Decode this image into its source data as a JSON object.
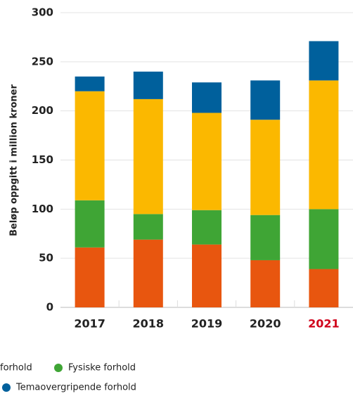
{
  "chart_data": {
    "type": "stacked_bar",
    "y_label": "Beløp oppgitt i million kroner",
    "categories": [
      "2017",
      "2018",
      "2019",
      "2020",
      "2021"
    ],
    "category_colors": [
      "#222222",
      "#222222",
      "#222222",
      "#222222",
      "#d0021b"
    ],
    "series": [
      {
        "name": "forhold",
        "color": "#e8560f",
        "values": [
          61,
          69,
          64,
          48,
          39
        ]
      },
      {
        "name": "Fysiske forhold",
        "color": "#3fa535",
        "values": [
          48,
          26,
          35,
          46,
          61
        ]
      },
      {
        "name": null,
        "color": "#fbb800",
        "values": [
          111,
          117,
          99,
          97,
          131
        ]
      },
      {
        "name": "Temaovergripende forhold",
        "color": "#00609c",
        "values": [
          15,
          28,
          31,
          40,
          40
        ]
      }
    ],
    "ylim": [
      0,
      300
    ],
    "yticks": [
      0,
      50,
      100,
      150,
      200,
      250,
      300
    ],
    "grid": true
  }
}
